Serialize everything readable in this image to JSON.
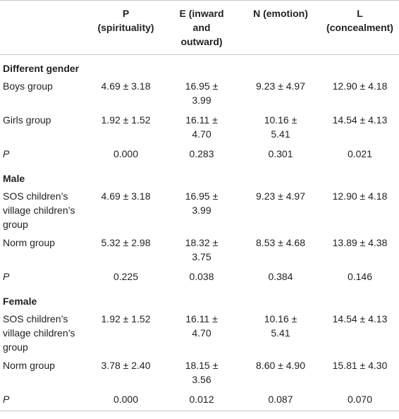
{
  "headers": {
    "col0": "",
    "col1": [
      "P",
      "(spirituality)"
    ],
    "col2": [
      "E (inward",
      "and",
      "outward)"
    ],
    "col3": [
      "N (emotion)"
    ],
    "col4": [
      "L",
      "(concealment)"
    ]
  },
  "sections": [
    {
      "title": "Different gender",
      "rows": [
        {
          "label": [
            "Boys group"
          ],
          "italic": false,
          "values": [
            [
              "4.69 ± 3.18"
            ],
            [
              "16.95 ±",
              "3.99"
            ],
            [
              "9.23 ± 4.97"
            ],
            [
              "12.90 ± 4.18"
            ]
          ]
        },
        {
          "label": [
            "Girls group"
          ],
          "italic": false,
          "values": [
            [
              "1.92 ± 1.52"
            ],
            [
              "16.11 ±",
              "4.70"
            ],
            [
              "10.16 ±",
              "5.41"
            ],
            [
              "14.54 ± 4.13"
            ]
          ]
        },
        {
          "label": [
            "P"
          ],
          "italic": true,
          "values": [
            [
              "0.000"
            ],
            [
              "0.283"
            ],
            [
              "0.301"
            ],
            [
              "0.021"
            ]
          ]
        }
      ]
    },
    {
      "title": "Male",
      "rows": [
        {
          "label": [
            "SOS children’s",
            "village children’s",
            "group"
          ],
          "italic": false,
          "values": [
            [
              "4.69 ± 3.18"
            ],
            [
              "16.95 ±",
              "3.99"
            ],
            [
              "9.23 ± 4.97"
            ],
            [
              "12.90 ± 4.18"
            ]
          ]
        },
        {
          "label": [
            "Norm group"
          ],
          "italic": false,
          "values": [
            [
              "5.32 ± 2.98"
            ],
            [
              "18.32 ±",
              "3.75"
            ],
            [
              "8.53 ± 4.68"
            ],
            [
              "13.89 ± 4.38"
            ]
          ]
        },
        {
          "label": [
            "P"
          ],
          "italic": true,
          "values": [
            [
              "0.225"
            ],
            [
              "0.038"
            ],
            [
              "0.384"
            ],
            [
              "0.146"
            ]
          ]
        }
      ]
    },
    {
      "title": "Female",
      "rows": [
        {
          "label": [
            "SOS children’s",
            "village children’s",
            "group"
          ],
          "italic": false,
          "values": [
            [
              "1.92 ± 1.52"
            ],
            [
              "16.11 ±",
              "4.70"
            ],
            [
              "10.16 ±",
              "5.41"
            ],
            [
              "14.54 ± 4.13"
            ]
          ]
        },
        {
          "label": [
            "Norm group"
          ],
          "italic": false,
          "values": [
            [
              "3.78 ± 2.40"
            ],
            [
              "18.15 ±",
              "3.56"
            ],
            [
              "8.60 ± 4.90"
            ],
            [
              "15.81 ± 4.30"
            ]
          ]
        },
        {
          "label": [
            "P"
          ],
          "italic": true,
          "values": [
            [
              "0.000"
            ],
            [
              "0.012"
            ],
            [
              "0.087"
            ],
            [
              "0.070"
            ]
          ]
        }
      ]
    }
  ]
}
